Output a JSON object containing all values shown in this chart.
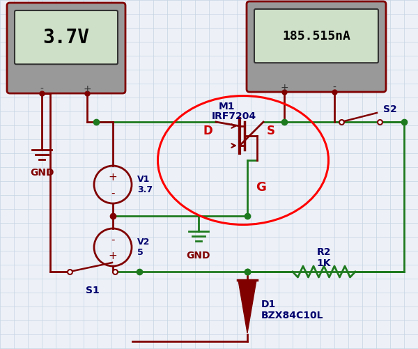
{
  "bg": "#edf1f7",
  "grid": "#c5d4e4",
  "wg": "#1e7a1e",
  "wr": "#800000",
  "bl": "#00006e",
  "red": "#cc0000",
  "meter1_text": "3.7V",
  "meter2_text": "185.515nA",
  "m1": "M1",
  "mosfet": "IRF7204",
  "v1": "V1\n3.7",
  "v2": "V2\n5",
  "r2": "R2\n1K",
  "d1": "D1\nBZX84C10L",
  "s1": "S1",
  "s2": "S2",
  "gnd": "GND",
  "D": "D",
  "S": "S",
  "G": "G",
  "figw": 6.0,
  "figh": 5.01,
  "dpi": 100
}
